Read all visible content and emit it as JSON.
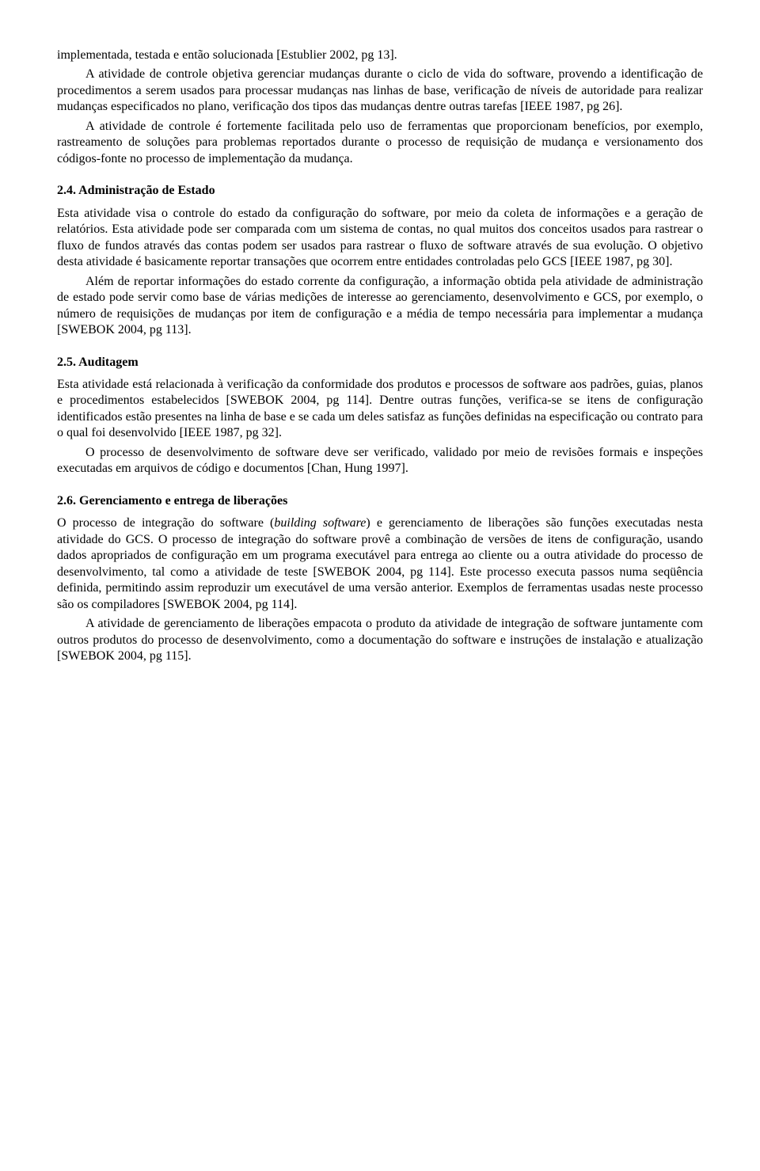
{
  "p1": "implementada, testada e então solucionada [Estublier 2002, pg 13].",
  "p2": "A atividade de controle objetiva gerenciar mudanças durante o ciclo de vida do software, provendo a identificação de procedimentos a serem usados para processar mudanças nas linhas de base, verificação de níveis de autoridade para realizar mudanças especificados no plano, verificação dos tipos das mudanças dentre outras tarefas [IEEE 1987, pg 26].",
  "p3": "A atividade de controle é fortemente facilitada pelo uso de ferramentas que proporcionam benefícios, por exemplo, rastreamento de soluções para problemas reportados durante o processo de requisição de mudança e versionamento dos códigos-fonte no processo de implementação da mudança.",
  "h24": "2.4.   Administração de Estado",
  "p4": "Esta atividade visa o controle do estado da configuração do software, por meio da coleta de informações e a geração de relatórios. Esta atividade pode ser comparada com um sistema de contas, no qual muitos dos conceitos usados para rastrear o fluxo de fundos através das contas podem ser usados para rastrear o fluxo de software através de sua evolução. O objetivo desta atividade é basicamente reportar transações que ocorrem entre entidades controladas pelo GCS [IEEE 1987, pg 30].",
  "p5": "Além de reportar informações do estado corrente da configuração, a informação obtida pela atividade de administração de estado pode servir como base de várias medições de interesse ao gerenciamento, desenvolvimento e GCS, por exemplo, o número de requisições de mudanças por item de configuração e a média de tempo necessária para implementar a mudança [SWEBOK 2004, pg 113].",
  "h25": "2.5.   Auditagem",
  "p6": "Esta atividade está relacionada à verificação da conformidade dos produtos e processos de software aos padrões, guias, planos e procedimentos estabelecidos [SWEBOK 2004, pg 114]. Dentre outras funções, verifica-se se itens de configuração identificados estão presentes na linha de base e se cada um deles satisfaz as funções definidas na especificação ou contrato para o qual foi desenvolvido [IEEE 1987, pg 32].",
  "p7": "O processo de desenvolvimento de software deve ser verificado, validado por meio de revisões formais e inspeções executadas em arquivos de código e documentos [Chan, Hung 1997].",
  "h26": "2.6.   Gerenciamento e entrega de liberações",
  "p8a": "O processo de integração do software (",
  "p8italic": "building software",
  "p8b": ") e gerenciamento de liberações são funções executadas nesta atividade do GCS. O processo de integração do software provê a combinação de versões de itens de configuração, usando dados apropriados de configuração em um programa executável para entrega ao cliente ou a outra atividade do processo de desenvolvimento, tal como a atividade de teste [SWEBOK 2004, pg 114]. Este processo executa passos numa seqüência definida, permitindo assim reproduzir um executável de uma versão anterior. Exemplos de ferramentas usadas neste processo são os compiladores [SWEBOK 2004, pg 114].",
  "p9": "A atividade de gerenciamento de liberações empacota o produto da atividade de integração de software juntamente com outros produtos do processo de desenvolvimento, como a documentação do software e instruções de instalação e atualização [SWEBOK 2004, pg 115]."
}
